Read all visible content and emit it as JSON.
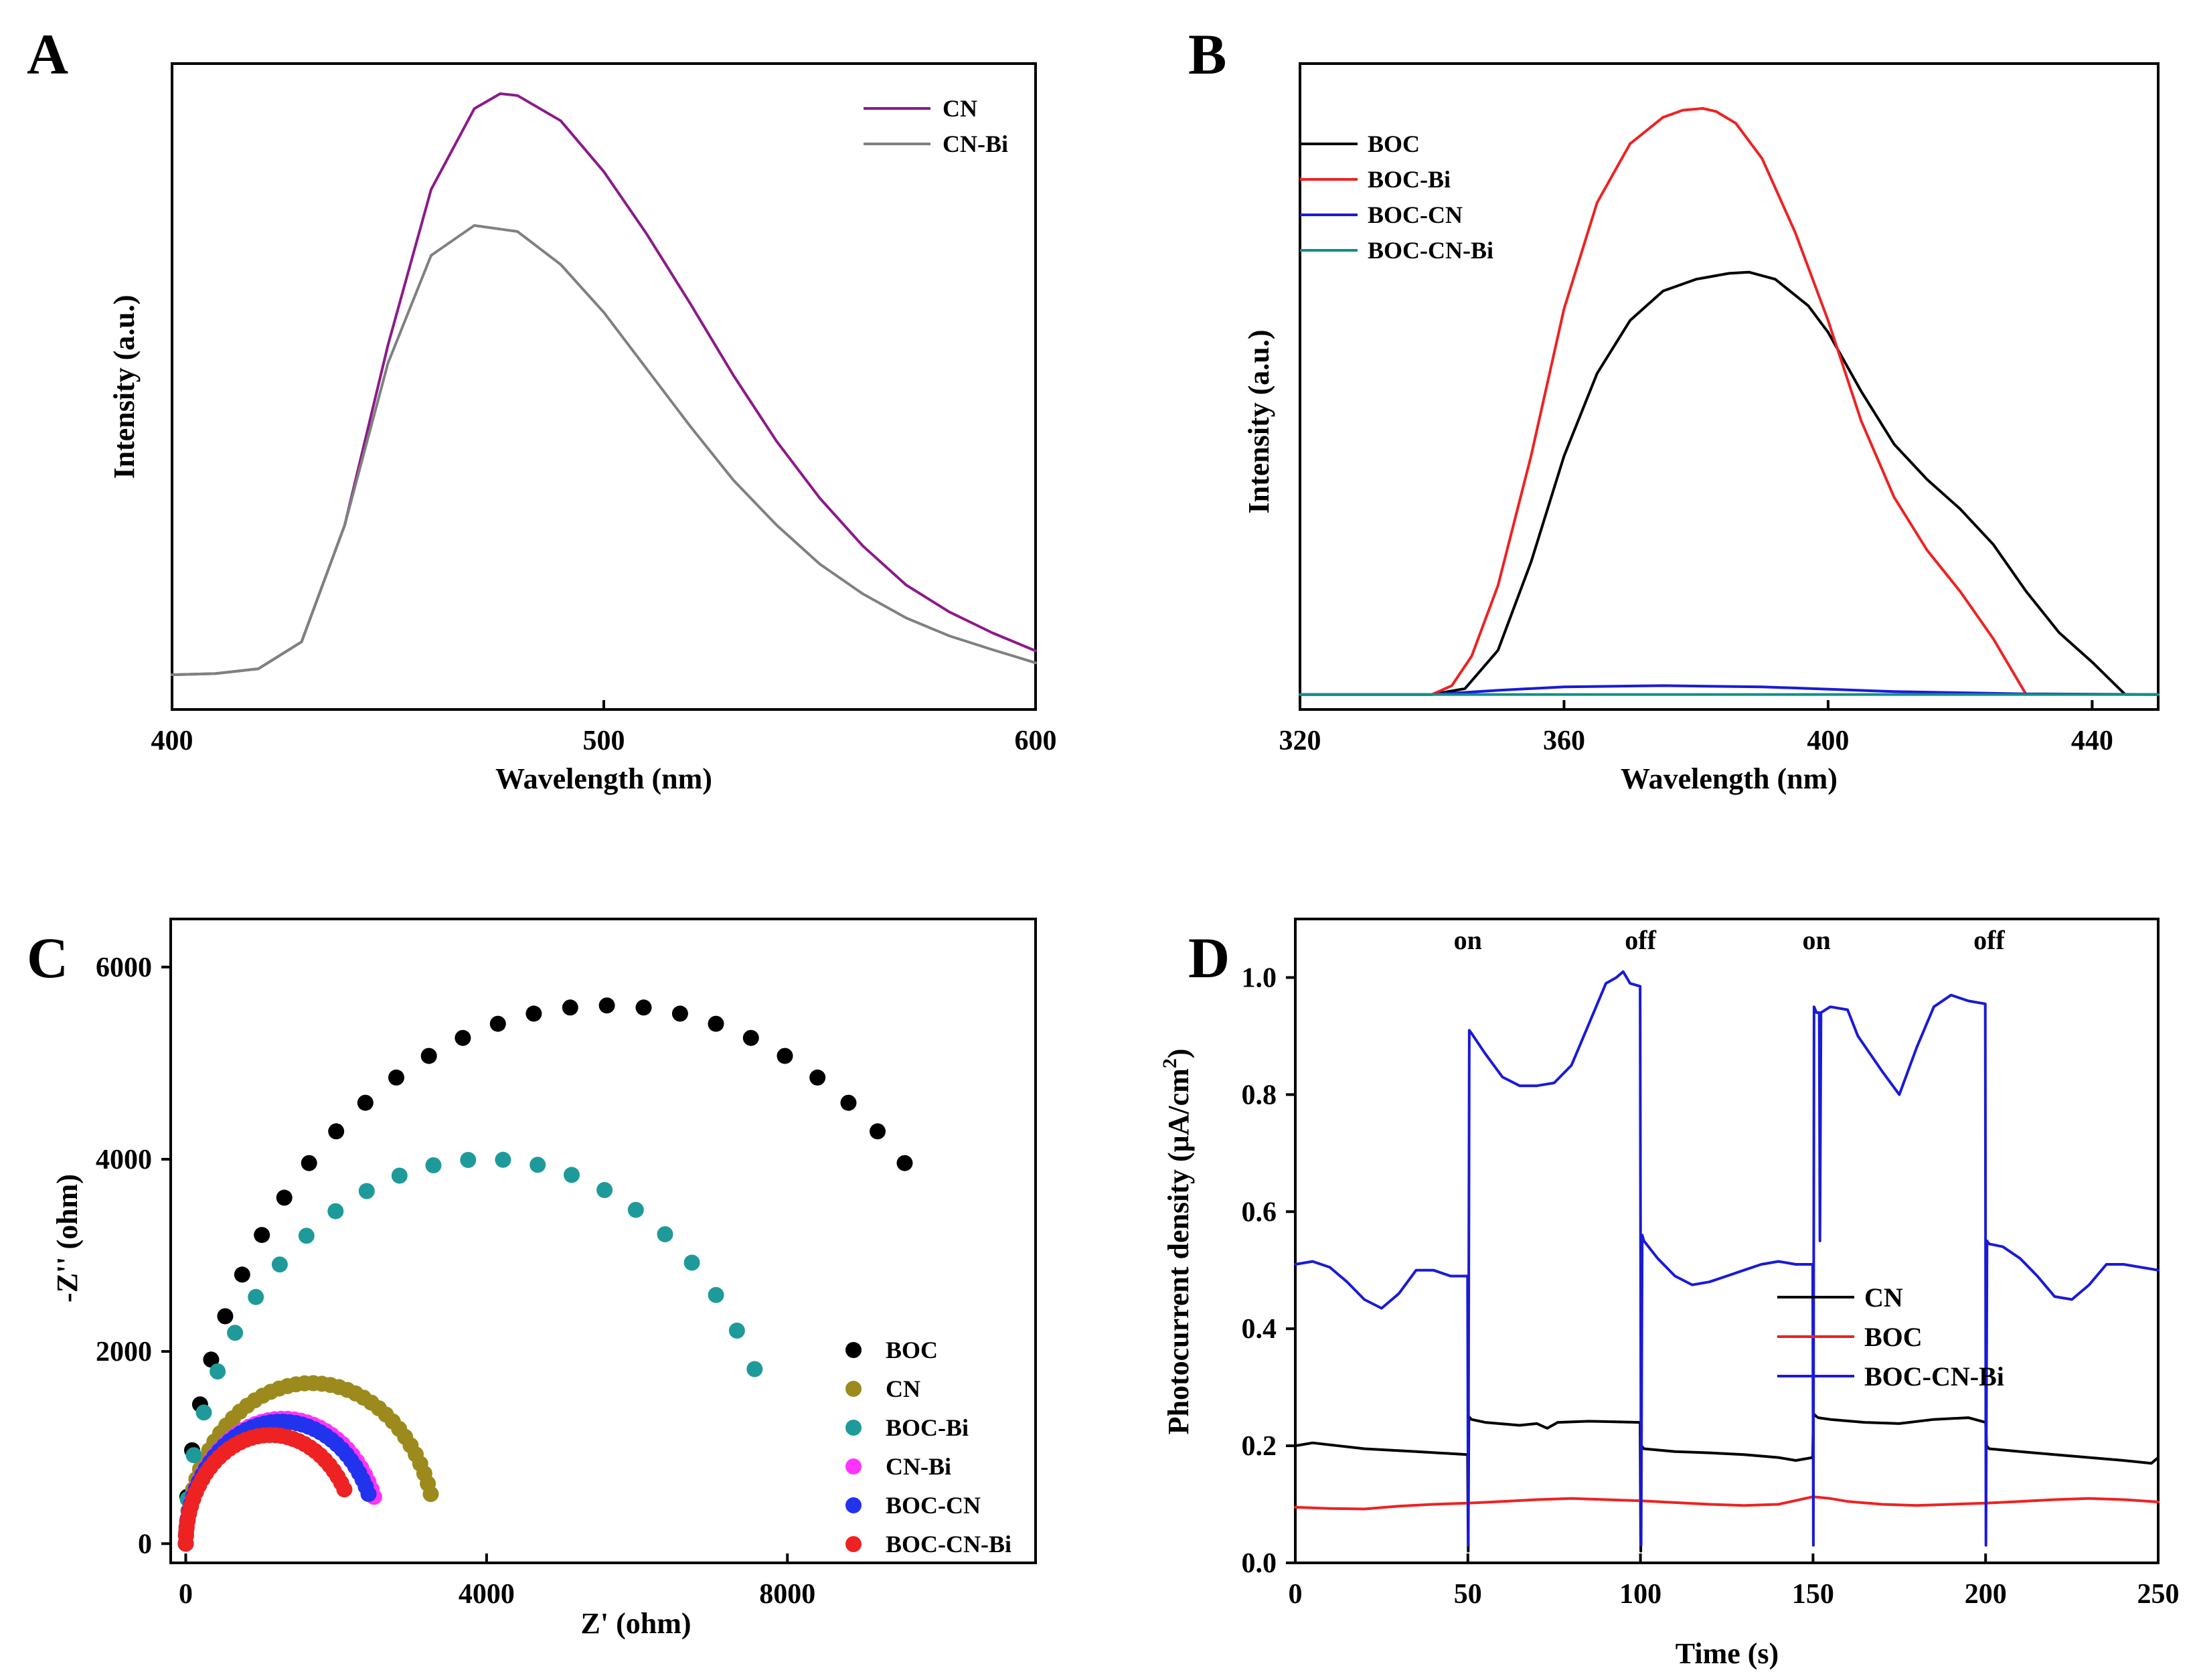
{
  "chart_data": [
    {
      "panel": "A",
      "type": "line",
      "xlabel": "Wavelength (nm)",
      "ylabel": "Intensity (a.u.)",
      "xlim": [
        400,
        600
      ],
      "ylim": [
        0,
        1
      ],
      "xticks": [
        "400",
        "500",
        "600"
      ],
      "series": [
        {
          "name": "CN",
          "color": "#8b1a89",
          "x": [
            400,
            410,
            420,
            430,
            440,
            450,
            460,
            470,
            476,
            480,
            490,
            500,
            510,
            520,
            530,
            540,
            550,
            560,
            570,
            580,
            590,
            600
          ],
          "y": [
            0.03,
            0.032,
            0.04,
            0.085,
            0.28,
            0.58,
            0.84,
            0.975,
            1.0,
            0.997,
            0.955,
            0.87,
            0.765,
            0.65,
            0.53,
            0.42,
            0.325,
            0.245,
            0.18,
            0.135,
            0.1,
            0.07
          ]
        },
        {
          "name": "CN-Bi",
          "color": "#808080",
          "x": [
            400,
            410,
            420,
            430,
            440,
            450,
            460,
            470,
            480,
            490,
            500,
            510,
            520,
            530,
            540,
            550,
            560,
            570,
            580,
            590,
            600
          ],
          "y": [
            0.03,
            0.032,
            0.04,
            0.085,
            0.28,
            0.55,
            0.73,
            0.78,
            0.77,
            0.715,
            0.635,
            0.54,
            0.445,
            0.355,
            0.28,
            0.215,
            0.165,
            0.125,
            0.095,
            0.072,
            0.05
          ]
        }
      ]
    },
    {
      "panel": "B",
      "type": "line",
      "xlabel": "Wavelength (nm)",
      "ylabel": "Intensity (a.u.)",
      "xlim": [
        320,
        450
      ],
      "ylim": [
        0,
        1
      ],
      "xticks": [
        "320",
        "360",
        "400",
        "440"
      ],
      "series": [
        {
          "name": "BOC",
          "color": "#000000",
          "x": [
            320,
            340,
            345,
            350,
            355,
            360,
            365,
            370,
            375,
            380,
            385,
            388,
            392,
            397,
            400,
            405,
            410,
            415,
            420,
            425,
            430,
            435,
            440,
            445,
            450
          ],
          "y": [
            0.005,
            0.005,
            0.015,
            0.08,
            0.23,
            0.41,
            0.55,
            0.64,
            0.69,
            0.71,
            0.72,
            0.722,
            0.71,
            0.665,
            0.62,
            0.52,
            0.43,
            0.37,
            0.32,
            0.26,
            0.18,
            0.11,
            0.06,
            0.005,
            0.005
          ]
        },
        {
          "name": "BOC-Bi",
          "color": "#ee2222",
          "x": [
            320,
            340,
            343,
            346,
            350,
            355,
            360,
            365,
            370,
            375,
            378,
            381,
            383,
            386,
            390,
            395,
            400,
            405,
            410,
            415,
            420,
            425,
            430
          ],
          "y": [
            0.005,
            0.005,
            0.02,
            0.07,
            0.19,
            0.41,
            0.66,
            0.84,
            0.94,
            0.985,
            0.997,
            1.0,
            0.995,
            0.975,
            0.915,
            0.79,
            0.64,
            0.47,
            0.34,
            0.25,
            0.18,
            0.1,
            0.005
          ]
        },
        {
          "name": "BOC-CN",
          "color": "#1a1ad8",
          "x": [
            320,
            340,
            350,
            360,
            375,
            390,
            410,
            430,
            450
          ],
          "y": [
            0.005,
            0.005,
            0.012,
            0.018,
            0.02,
            0.018,
            0.01,
            0.006,
            0.005
          ]
        },
        {
          "name": "BOC-CN-Bi",
          "color": "#118f86",
          "x": [
            320,
            450
          ],
          "y": [
            0.005,
            0.005
          ]
        }
      ]
    },
    {
      "panel": "C",
      "type": "scatter",
      "xlabel": "Z' (ohm)",
      "ylabel": "-Z'' (ohm)",
      "xlim": [
        -200,
        11300
      ],
      "ylim": [
        -200,
        6500
      ],
      "xticks": [
        0,
        4000,
        8000
      ],
      "yticks": [
        0,
        2000,
        4000,
        6000
      ],
      "series": [
        {
          "name": "BOC",
          "color": "#000000",
          "arc": {
            "center": 5600,
            "radius": 5600,
            "start_deg": 180,
            "end_deg": 45,
            "points": 28
          }
        },
        {
          "name": "CN",
          "color": "#9c8a1d",
          "arc": {
            "center": 1670,
            "radius": 1670,
            "start_deg": 180,
            "end_deg": 18,
            "points": 42
          }
        },
        {
          "name": "BOC-Bi",
          "color": "#1f9a9a",
          "arc": {
            "center": 4000,
            "radius": 4000,
            "start_deg": 180,
            "end_deg": 27,
            "points": 24
          }
        },
        {
          "name": "CN-Bi",
          "color": "#ff33ff",
          "arc": {
            "center": 1300,
            "radius": 1300,
            "start_deg": 180,
            "end_deg": 22,
            "points": 42
          }
        },
        {
          "name": "BOC-CN",
          "color": "#2233ee",
          "arc": {
            "center": 1270,
            "radius": 1270,
            "start_deg": 180,
            "end_deg": 24,
            "points": 42
          }
        },
        {
          "name": "BOC-CN-Bi",
          "color": "#ee2222",
          "arc": {
            "center": 1130,
            "radius": 1130,
            "start_deg": 180,
            "end_deg": 30,
            "points": 38
          }
        }
      ]
    },
    {
      "panel": "D",
      "type": "line",
      "xlabel": "Time (s)",
      "ylabel": "Photocurrent density (μA/cm",
      "ylabel_sup": "2",
      "ylabel_close": ")",
      "xlim": [
        0,
        250
      ],
      "ylim": [
        0,
        1.1
      ],
      "xticks": [
        "0",
        "50",
        "100",
        "150",
        "200",
        "250"
      ],
      "yticks": [
        "0.0",
        "0.2",
        "0.4",
        "0.6",
        "0.8",
        "1.0"
      ],
      "annotations": [
        {
          "text": "on",
          "x": 50
        },
        {
          "text": "off",
          "x": 100
        },
        {
          "text": "on",
          "x": 151
        },
        {
          "text": "off",
          "x": 201
        }
      ],
      "series": [
        {
          "name": "CN",
          "color": "#000000",
          "x": [
            0,
            5,
            20,
            35,
            49.9,
            50.1,
            50.3,
            51,
            55,
            65,
            70,
            73,
            76,
            85,
            99.9,
            100.1,
            100.3,
            101,
            110,
            120,
            130,
            140,
            145,
            149.9,
            150.1,
            151,
            151.5,
            155,
            165,
            175,
            185,
            195,
            200,
            200.3,
            201,
            210,
            220,
            230,
            240,
            248,
            250
          ],
          "y": [
            0.2,
            0.205,
            0.195,
            0.19,
            0.185,
            0.02,
            0.25,
            0.245,
            0.24,
            0.235,
            0.238,
            0.23,
            0.24,
            0.242,
            0.24,
            0.02,
            0.2,
            0.195,
            0.19,
            0.188,
            0.185,
            0.18,
            0.175,
            0.18,
            0.255,
            0.25,
            0.248,
            0.245,
            0.24,
            0.238,
            0.245,
            0.248,
            0.24,
            0.2,
            0.195,
            0.19,
            0.185,
            0.18,
            0.175,
            0.17,
            0.18
          ]
        },
        {
          "name": "BOC",
          "color": "#ee2222",
          "x": [
            0,
            10,
            20,
            30,
            40,
            50,
            60,
            70,
            80,
            90,
            100,
            110,
            120,
            130,
            140,
            150,
            155,
            160,
            170,
            180,
            190,
            200,
            210,
            220,
            230,
            240,
            250
          ],
          "y": [
            0.095,
            0.093,
            0.092,
            0.097,
            0.1,
            0.102,
            0.105,
            0.108,
            0.11,
            0.108,
            0.106,
            0.103,
            0.1,
            0.098,
            0.1,
            0.113,
            0.11,
            0.105,
            0.1,
            0.098,
            0.1,
            0.102,
            0.105,
            0.108,
            0.11,
            0.108,
            0.104
          ]
        },
        {
          "name": "BOC-CN-Bi",
          "color": "#1a1ad8",
          "x": [
            0,
            5,
            10,
            15,
            20,
            25,
            30,
            35,
            40,
            45,
            49.9,
            50.1,
            50.4,
            51,
            55,
            60,
            65,
            70,
            75,
            80,
            85,
            90,
            93,
            95,
            97,
            99.9,
            100.2,
            100.5,
            101,
            105,
            110,
            115,
            120,
            125,
            130,
            135,
            140,
            145,
            149.9,
            150.1,
            150.3,
            151,
            151.8,
            152,
            152.3,
            155,
            160,
            163,
            170,
            175,
            180,
            185,
            190,
            195,
            199.9,
            200.1,
            200.4,
            201,
            205,
            210,
            215,
            220,
            225,
            230,
            235,
            240,
            245,
            250
          ],
          "y": [
            0.51,
            0.515,
            0.505,
            0.48,
            0.45,
            0.435,
            0.46,
            0.5,
            0.5,
            0.49,
            0.49,
            0.03,
            0.91,
            0.905,
            0.87,
            0.83,
            0.815,
            0.815,
            0.82,
            0.85,
            0.92,
            0.99,
            1.0,
            1.01,
            0.99,
            0.985,
            0.03,
            0.56,
            0.55,
            0.52,
            0.49,
            0.475,
            0.48,
            0.49,
            0.5,
            0.51,
            0.515,
            0.51,
            0.51,
            0.03,
            0.95,
            0.94,
            0.94,
            0.55,
            0.94,
            0.95,
            0.945,
            0.9,
            0.84,
            0.8,
            0.88,
            0.95,
            0.97,
            0.96,
            0.955,
            0.03,
            0.55,
            0.545,
            0.54,
            0.52,
            0.49,
            0.455,
            0.45,
            0.475,
            0.51,
            0.51,
            0.505,
            0.5
          ]
        }
      ]
    }
  ],
  "panels": {
    "A": {
      "label": "A"
    },
    "B": {
      "label": "B"
    },
    "C": {
      "label": "C"
    },
    "D": {
      "label": "D"
    }
  }
}
